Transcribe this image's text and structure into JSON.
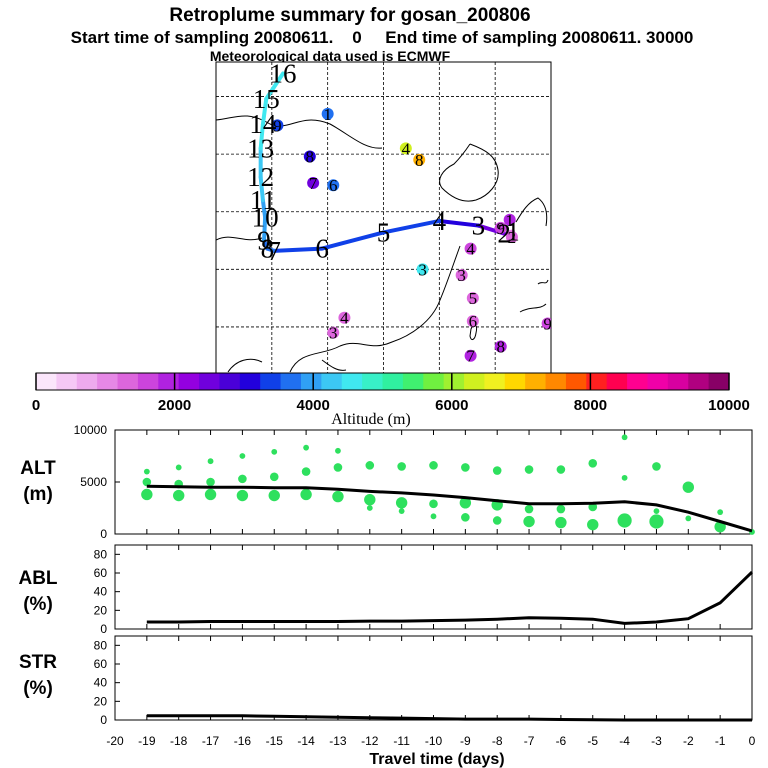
{
  "titles": {
    "main": "Retroplume summary for gosan_200806",
    "sampling": "Start time of sampling 20080611.    0     End time of sampling 20080611. 30000",
    "met": "Meteorological data used is ECMWF"
  },
  "colorbar": {
    "label": "Altitude (m)",
    "tick_labels": [
      "0",
      "2000",
      "4000",
      "6000",
      "8000",
      "10000"
    ],
    "tick_values": [
      0,
      2000,
      4000,
      6000,
      8000,
      10000
    ],
    "colors": [
      "#fbe6fb",
      "#f5c8f5",
      "#eeaaee",
      "#e688e6",
      "#dd66dd",
      "#cc44dd",
      "#b022e0",
      "#9400e0",
      "#7000dd",
      "#4a00d8",
      "#2200dd",
      "#1040e8",
      "#2070f0",
      "#30a0f4",
      "#3cc8f4",
      "#40e8f0",
      "#38f0c8",
      "#30f0a0",
      "#40f070",
      "#70f040",
      "#a0f030",
      "#d0f020",
      "#f0f020",
      "#ffd800",
      "#ffb000",
      "#ff8800",
      "#ff5800",
      "#ff2020",
      "#ff0050",
      "#ff0090",
      "#f000a8",
      "#d800a0",
      "#b00080",
      "#880066"
    ]
  },
  "map": {
    "trajectory_points": [
      {
        "label": "1",
        "day": 1,
        "lon": 126.6,
        "lat": 33.3,
        "alt": 400
      },
      {
        "label": "2",
        "day": 2,
        "lon": 125.8,
        "lat": 33.1,
        "alt": 1900
      },
      {
        "label": "3",
        "day": 3,
        "lon": 123.5,
        "lat": 33.8,
        "alt": 3000
      },
      {
        "label": "4",
        "day": 4,
        "lon": 120.0,
        "lat": 34.2,
        "alt": 3200
      },
      {
        "label": "5",
        "day": 5,
        "lon": 115.0,
        "lat": 33.2,
        "alt": 3300
      },
      {
        "label": "6",
        "day": 6,
        "lon": 109.5,
        "lat": 31.8,
        "alt": 3400
      },
      {
        "label": "7",
        "day": 7,
        "lon": 105.2,
        "lat": 31.6,
        "alt": 3500
      },
      {
        "label": "8",
        "day": 8,
        "lon": 104.6,
        "lat": 31.8,
        "alt": 3700
      },
      {
        "label": "9",
        "day": 9,
        "lon": 104.3,
        "lat": 32.5,
        "alt": 3800
      },
      {
        "label": "10",
        "day": 10,
        "lon": 104.4,
        "lat": 34.5,
        "alt": 3900
      },
      {
        "label": "11",
        "day": 11,
        "lon": 104.2,
        "lat": 36.0,
        "alt": 4100
      },
      {
        "label": "12",
        "day": 12,
        "lon": 104.0,
        "lat": 38.0,
        "alt": 4300
      },
      {
        "label": "13",
        "day": 13,
        "lon": 104.0,
        "lat": 40.5,
        "alt": 4400
      },
      {
        "label": "14",
        "day": 14,
        "lon": 104.2,
        "lat": 42.6,
        "alt": 4500
      },
      {
        "label": "15",
        "day": 15,
        "lon": 104.5,
        "lat": 44.8,
        "alt": 4500
      },
      {
        "label": "16",
        "day": 16,
        "lon": 106.0,
        "lat": 47.0,
        "alt": 4600
      }
    ],
    "clusters": [
      {
        "label": "1",
        "lon": 126.3,
        "lat": 34.3,
        "alt": 1800
      },
      {
        "label": "2",
        "lon": 126.5,
        "lat": 32.8,
        "alt": 1200
      },
      {
        "label": "3",
        "lon": 122.0,
        "lat": 29.5,
        "alt": 1200
      },
      {
        "label": "4",
        "lon": 122.8,
        "lat": 31.8,
        "alt": 1500
      },
      {
        "label": "5",
        "lon": 123.0,
        "lat": 27.5,
        "alt": 1300
      },
      {
        "label": "6",
        "lon": 123.0,
        "lat": 25.5,
        "alt": 1400
      },
      {
        "label": "7",
        "lon": 122.8,
        "lat": 22.5,
        "alt": 1800
      },
      {
        "label": "8",
        "lon": 125.5,
        "lat": 23.3,
        "alt": 1900
      },
      {
        "label": "9",
        "lon": 129.7,
        "lat": 25.3,
        "alt": 1700
      },
      {
        "label": "9",
        "lon": 125.5,
        "lat": 33.6,
        "alt": 1700
      },
      {
        "label": "3",
        "lon": 118.5,
        "lat": 30.0,
        "alt": 4600
      },
      {
        "label": "4",
        "lon": 117.0,
        "lat": 40.5,
        "alt": 6300
      },
      {
        "label": "8",
        "lon": 118.2,
        "lat": 39.5,
        "alt": 7100
      },
      {
        "label": "6",
        "lon": 110.5,
        "lat": 37.3,
        "alt": 3700
      },
      {
        "label": "7",
        "lon": 108.7,
        "lat": 37.5,
        "alt": 2400
      },
      {
        "label": "8",
        "lon": 108.4,
        "lat": 39.8,
        "alt": 3200
      },
      {
        "label": "9",
        "lon": 105.5,
        "lat": 42.5,
        "alt": 3300
      },
      {
        "label": "1",
        "lon": 110.0,
        "lat": 43.5,
        "alt": 3600
      },
      {
        "label": "4",
        "lon": 111.5,
        "lat": 25.8,
        "alt": 1400
      },
      {
        "label": "3",
        "lon": 110.5,
        "lat": 24.5,
        "alt": 1200
      }
    ]
  },
  "panels": {
    "alt": {
      "label_line1": "ALT",
      "label_line2": "(m)",
      "yticks": [
        "10000",
        "5000",
        "0"
      ]
    },
    "abl": {
      "label_line1": "ABL",
      "label_line2": "(%)",
      "yticks": [
        "80",
        "60",
        "40",
        "20",
        "0"
      ]
    },
    "str": {
      "label_line1": "STR",
      "label_line2": "(%)",
      "yticks": [
        "80",
        "60",
        "40",
        "20",
        "0"
      ]
    },
    "xlabel": "Travel time (days)",
    "xticks": [
      "-20",
      "-19",
      "-18",
      "-17",
      "-16",
      "-15",
      "-14",
      "-13",
      "-12",
      "-11",
      "-10",
      "-9",
      "-8",
      "-7",
      "-6",
      "-5",
      "-4",
      "-3",
      "-2",
      "-1",
      "0"
    ]
  },
  "chart_data": [
    {
      "type": "scatter",
      "title": "ALT",
      "xlabel": "Travel time (days)",
      "ylabel": "ALT (m)",
      "xlim": [
        -20,
        0
      ],
      "ylim": [
        0,
        10000
      ],
      "mean_line": {
        "x": [
          -19,
          -18,
          -17,
          -16,
          -15,
          -14,
          -13,
          -12,
          -11,
          -10,
          -9,
          -8,
          -7,
          -6,
          -5,
          -4,
          -3,
          -2,
          -1,
          0
        ],
        "y": [
          4600,
          4550,
          4500,
          4500,
          4450,
          4450,
          4300,
          4100,
          3950,
          3750,
          3500,
          3200,
          2900,
          2900,
          2950,
          3100,
          2800,
          2100,
          1200,
          300
        ]
      },
      "cluster_points": [
        {
          "x": -19,
          "y": 6000,
          "size": 1
        },
        {
          "x": -19,
          "y": 5000,
          "size": 2
        },
        {
          "x": -19,
          "y": 3800,
          "size": 3
        },
        {
          "x": -18,
          "y": 6400,
          "size": 1
        },
        {
          "x": -18,
          "y": 4800,
          "size": 2
        },
        {
          "x": -18,
          "y": 3700,
          "size": 3
        },
        {
          "x": -17,
          "y": 7000,
          "size": 1
        },
        {
          "x": -17,
          "y": 5000,
          "size": 2
        },
        {
          "x": -17,
          "y": 3800,
          "size": 3
        },
        {
          "x": -16,
          "y": 7500,
          "size": 1
        },
        {
          "x": -16,
          "y": 5300,
          "size": 2
        },
        {
          "x": -16,
          "y": 3700,
          "size": 3
        },
        {
          "x": -15,
          "y": 7900,
          "size": 1
        },
        {
          "x": -15,
          "y": 5500,
          "size": 2
        },
        {
          "x": -15,
          "y": 3700,
          "size": 3
        },
        {
          "x": -14,
          "y": 8300,
          "size": 1
        },
        {
          "x": -14,
          "y": 6000,
          "size": 2
        },
        {
          "x": -14,
          "y": 3800,
          "size": 3
        },
        {
          "x": -13,
          "y": 8000,
          "size": 1
        },
        {
          "x": -13,
          "y": 6400,
          "size": 2
        },
        {
          "x": -13,
          "y": 3600,
          "size": 3
        },
        {
          "x": -12,
          "y": 6600,
          "size": 2
        },
        {
          "x": -12,
          "y": 3300,
          "size": 3
        },
        {
          "x": -12,
          "y": 2500,
          "size": 1
        },
        {
          "x": -11,
          "y": 6500,
          "size": 2
        },
        {
          "x": -11,
          "y": 3000,
          "size": 3
        },
        {
          "x": -11,
          "y": 2200,
          "size": 1
        },
        {
          "x": -10,
          "y": 6600,
          "size": 2
        },
        {
          "x": -10,
          "y": 2900,
          "size": 2
        },
        {
          "x": -10,
          "y": 1700,
          "size": 1
        },
        {
          "x": -9,
          "y": 6400,
          "size": 2
        },
        {
          "x": -9,
          "y": 3000,
          "size": 3
        },
        {
          "x": -9,
          "y": 1600,
          "size": 2
        },
        {
          "x": -8,
          "y": 6100,
          "size": 2
        },
        {
          "x": -8,
          "y": 2800,
          "size": 3
        },
        {
          "x": -8,
          "y": 1300,
          "size": 2
        },
        {
          "x": -7,
          "y": 6200,
          "size": 2
        },
        {
          "x": -7,
          "y": 2400,
          "size": 2
        },
        {
          "x": -7,
          "y": 1200,
          "size": 3
        },
        {
          "x": -6,
          "y": 6200,
          "size": 2
        },
        {
          "x": -6,
          "y": 2400,
          "size": 2
        },
        {
          "x": -6,
          "y": 1100,
          "size": 3
        },
        {
          "x": -5,
          "y": 6800,
          "size": 2
        },
        {
          "x": -5,
          "y": 2600,
          "size": 2
        },
        {
          "x": -5,
          "y": 900,
          "size": 3
        },
        {
          "x": -4,
          "y": 9300,
          "size": 1
        },
        {
          "x": -4,
          "y": 5400,
          "size": 1
        },
        {
          "x": -4,
          "y": 1300,
          "size": 4
        },
        {
          "x": -3,
          "y": 6500,
          "size": 2
        },
        {
          "x": -3,
          "y": 2200,
          "size": 1
        },
        {
          "x": -3,
          "y": 1200,
          "size": 4
        },
        {
          "x": -2,
          "y": 4500,
          "size": 3
        },
        {
          "x": -2,
          "y": 1500,
          "size": 1
        },
        {
          "x": -1,
          "y": 2100,
          "size": 1
        },
        {
          "x": -1,
          "y": 700,
          "size": 3
        },
        {
          "x": 0,
          "y": 200,
          "size": 1
        }
      ]
    },
    {
      "type": "line",
      "title": "ABL",
      "xlabel": "Travel time (days)",
      "ylabel": "ABL (%)",
      "xlim": [
        -20,
        0
      ],
      "ylim": [
        0,
        90
      ],
      "x": [
        -19,
        -18,
        -17,
        -16,
        -15,
        -14,
        -13,
        -12,
        -11,
        -10,
        -9,
        -8,
        -7,
        -6,
        -5,
        -4,
        -3,
        -2,
        -1,
        0
      ],
      "y": [
        7.5,
        7.5,
        8,
        8,
        8,
        8,
        8,
        8.5,
        8.5,
        9,
        9.5,
        10.5,
        12,
        11.5,
        10.5,
        6,
        7.5,
        11,
        28,
        61
      ]
    },
    {
      "type": "line",
      "title": "STR",
      "xlabel": "Travel time (days)",
      "ylabel": "STR (%)",
      "xlim": [
        -20,
        0
      ],
      "ylim": [
        0,
        90
      ],
      "x": [
        -19,
        -18,
        -17,
        -16,
        -15,
        -14,
        -13,
        -12,
        -11,
        -10,
        -9,
        -8,
        -7,
        -6,
        -5,
        -4,
        -3,
        -2,
        -1,
        0
      ],
      "y": [
        4.5,
        4.5,
        4.5,
        4.5,
        4,
        3.5,
        3,
        2.5,
        2,
        1.5,
        1,
        1,
        1,
        0.5,
        0.3,
        0,
        0,
        0,
        0,
        0
      ]
    }
  ]
}
